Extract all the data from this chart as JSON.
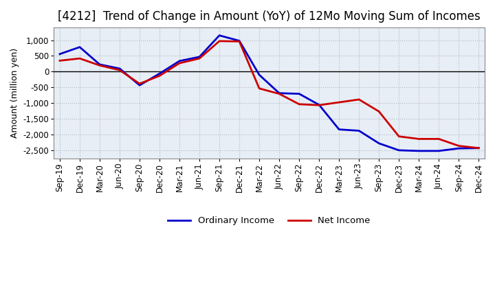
{
  "title": "[4212]  Trend of Change in Amount (YoY) of 12Mo Moving Sum of Incomes",
  "ylabel": "Amount (million yen)",
  "x_labels": [
    "Sep-19",
    "Dec-19",
    "Mar-20",
    "Jun-20",
    "Sep-20",
    "Dec-20",
    "Mar-21",
    "Jun-21",
    "Sep-21",
    "Dec-21",
    "Mar-22",
    "Jun-22",
    "Sep-22",
    "Dec-22",
    "Mar-23",
    "Jun-23",
    "Sep-23",
    "Dec-23",
    "Mar-24",
    "Jun-24",
    "Sep-24",
    "Dec-24"
  ],
  "ordinary_income": [
    560,
    780,
    230,
    100,
    -430,
    -60,
    340,
    470,
    1150,
    980,
    -100,
    -680,
    -700,
    -1050,
    -1830,
    -1870,
    -2270,
    -2490,
    -2510,
    -2510,
    -2430,
    -2420
  ],
  "net_income": [
    350,
    420,
    200,
    50,
    -380,
    -130,
    270,
    420,
    970,
    960,
    -530,
    -700,
    -1030,
    -1060,
    -970,
    -880,
    -1260,
    -2050,
    -2130,
    -2130,
    -2350,
    -2420
  ],
  "ordinary_color": "#0000cc",
  "net_color": "#cc0000",
  "ylim": [
    -2750,
    1400
  ],
  "yticks": [
    -2500,
    -2000,
    -1500,
    -1000,
    -500,
    0,
    500,
    1000
  ],
  "plot_bg_color": "#e8eef5",
  "background_color": "#ffffff",
  "grid_color": "#b0b8c8",
  "legend_labels": [
    "Ordinary Income",
    "Net Income"
  ],
  "title_fontsize": 12,
  "label_fontsize": 9,
  "tick_fontsize": 8.5
}
